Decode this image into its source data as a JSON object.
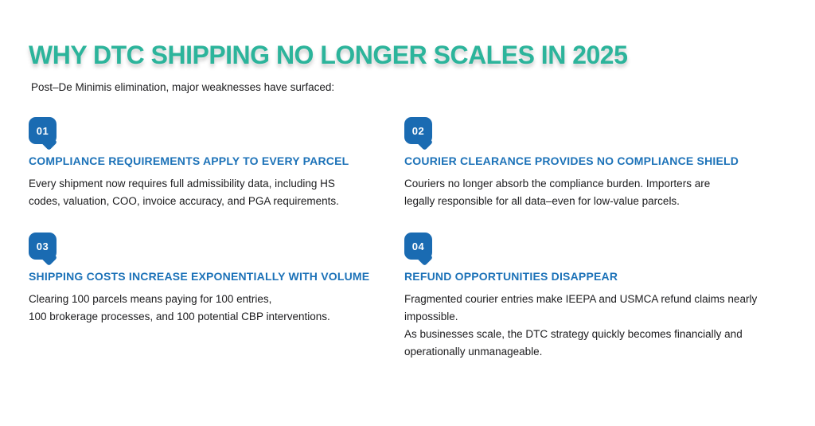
{
  "page": {
    "title": "WHY DTC SHIPPING NO LONGER SCALES IN 2025",
    "subtitle": "Post–De Minimis elimination, major weaknesses have surfaced:"
  },
  "colors": {
    "title_teal": "#2CB49B",
    "heading_blue": "#1C72B8",
    "badge_blue": "#1A6BB2",
    "body_text": "#1C1C1E",
    "background": "#FFFFFF"
  },
  "items": [
    {
      "number": "01",
      "title": "COMPLIANCE REQUIREMENTS APPLY TO EVERY PARCEL",
      "body": "Every shipment now requires full admissibility data, including HS\ncodes, valuation, COO, invoice accuracy, and PGA requirements."
    },
    {
      "number": "02",
      "title": "COURIER CLEARANCE PROVIDES NO COMPLIANCE SHIELD",
      "body": "Couriers no longer absorb the compliance burden. Importers are\nlegally responsible for all data–even for low-value parcels."
    },
    {
      "number": "03",
      "title": "SHIPPING COSTS INCREASE EXPONENTIALLY WITH VOLUME",
      "body": "Clearing 100 parcels means paying for 100 entries,\n100 brokerage processes, and 100 potential CBP interventions."
    },
    {
      "number": "04",
      "title": "REFUND OPPORTUNITIES DISAPPEAR",
      "body": "Fragmented courier entries make IEEPA and USMCA refund claims nearly\nimpossible.\nAs businesses scale, the DTC strategy quickly becomes financially and\noperationally unmanageable."
    }
  ]
}
